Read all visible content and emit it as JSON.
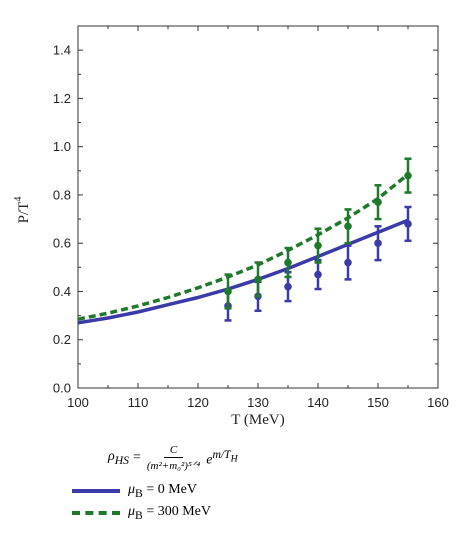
{
  "chart_data": {
    "type": "line",
    "xlabel": "T (MeV)",
    "ylabel": "P/T",
    "ylabel_sup": "4",
    "xlim": [
      100,
      160
    ],
    "ylim": [
      0,
      1.5
    ],
    "x_ticks": [
      "100",
      "110",
      "120",
      "130",
      "140",
      "150",
      "160"
    ],
    "y_ticks": [
      "0.0",
      "0.2",
      "0.4",
      "0.6",
      "0.8",
      "1.0",
      "1.2",
      "1.4"
    ],
    "grid": false,
    "series": [
      {
        "name": "μB = 0 MeV",
        "color": "#3a3aa8",
        "style": "solid",
        "curve_x": [
          100,
          105,
          110,
          115,
          120,
          125,
          130,
          135,
          140,
          145,
          150,
          155
        ],
        "curve_y": [
          0.27,
          0.29,
          0.315,
          0.345,
          0.375,
          0.41,
          0.45,
          0.495,
          0.545,
          0.595,
          0.645,
          0.695
        ],
        "points": [
          {
            "x": 125,
            "y": 0.34,
            "err": 0.06
          },
          {
            "x": 130,
            "y": 0.38,
            "err": 0.06
          },
          {
            "x": 135,
            "y": 0.42,
            "err": 0.06
          },
          {
            "x": 140,
            "y": 0.47,
            "err": 0.06
          },
          {
            "x": 145,
            "y": 0.52,
            "err": 0.07
          },
          {
            "x": 150,
            "y": 0.6,
            "err": 0.07
          },
          {
            "x": 155,
            "y": 0.68,
            "err": 0.07
          }
        ]
      },
      {
        "name": "μB = 300 MeV",
        "color": "#1e7a2a",
        "style": "dashed",
        "curve_x": [
          100,
          105,
          110,
          115,
          120,
          125,
          130,
          135,
          140,
          145,
          150,
          155
        ],
        "curve_y": [
          0.285,
          0.31,
          0.34,
          0.375,
          0.415,
          0.46,
          0.51,
          0.57,
          0.635,
          0.705,
          0.785,
          0.885
        ],
        "points": [
          {
            "x": 125,
            "y": 0.4,
            "err": 0.07
          },
          {
            "x": 130,
            "y": 0.45,
            "err": 0.07
          },
          {
            "x": 135,
            "y": 0.52,
            "err": 0.06
          },
          {
            "x": 140,
            "y": 0.59,
            "err": 0.07
          },
          {
            "x": 145,
            "y": 0.67,
            "err": 0.07
          },
          {
            "x": 150,
            "y": 0.77,
            "err": 0.07
          },
          {
            "x": 155,
            "y": 0.88,
            "err": 0.07
          }
        ]
      }
    ]
  },
  "formula": {
    "lhs_symbol": "ρ",
    "lhs_sub": "HS",
    "equals": "=",
    "numerator": "C",
    "denominator": "(m²+m₀²)⁵ᐟ⁴",
    "exp_base": "e",
    "exp_power": "m/T",
    "exp_power_sub": "H"
  },
  "legend": {
    "items": [
      {
        "symbol": "μ",
        "sub": "B",
        "text": " = 0 MeV"
      },
      {
        "symbol": "μ",
        "sub": "B",
        "text": " = 300 MeV"
      }
    ]
  }
}
